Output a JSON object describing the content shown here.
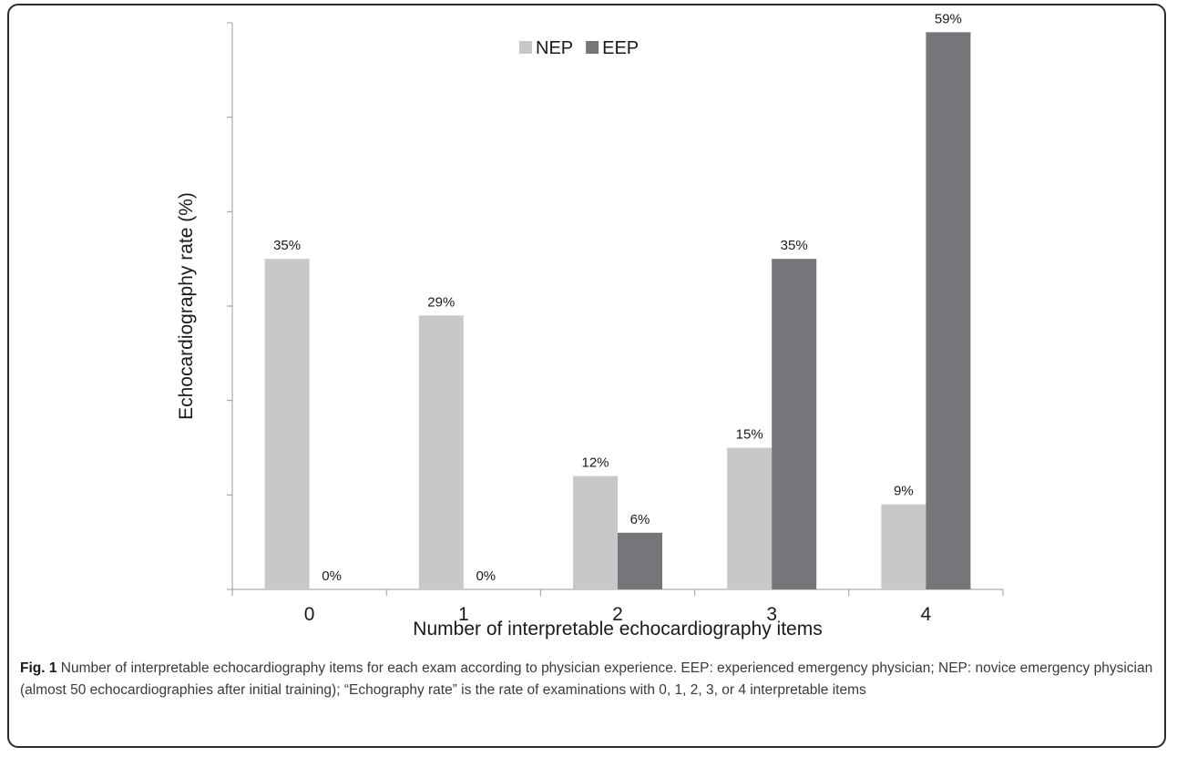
{
  "chart_data": {
    "type": "bar",
    "categories": [
      "0",
      "1",
      "2",
      "3",
      "4"
    ],
    "series": [
      {
        "name": "NEP",
        "values": [
          35,
          29,
          12,
          15,
          9
        ],
        "labels": [
          "35%",
          "29%",
          "12%",
          "15%",
          "9%"
        ],
        "color": "#c8c8c8"
      },
      {
        "name": "EEP",
        "values": [
          0,
          0,
          6,
          35,
          59
        ],
        "labels": [
          "0%",
          "0%",
          "6%",
          "35%",
          "59%"
        ],
        "color": "#76767a"
      }
    ],
    "xlabel": "Number of interpretable echocardiography items",
    "ylabel": "Echocardiography rate (%)",
    "ylim": [
      0,
      60
    ],
    "y_tick_step": 10,
    "y_tick_labels_shown": false,
    "grid": false,
    "legend_position": "top-center"
  },
  "caption": {
    "label": "Fig. 1",
    "text": " Number of interpretable echocardiography items for each exam according to physician experience. EEP: experienced emergency physician; NEP: novice emergency physician (almost 50 echocardiographies after initial training); “Echography rate” is the rate of examinations with 0, 1, 2, 3, or 4 interpretable items"
  }
}
